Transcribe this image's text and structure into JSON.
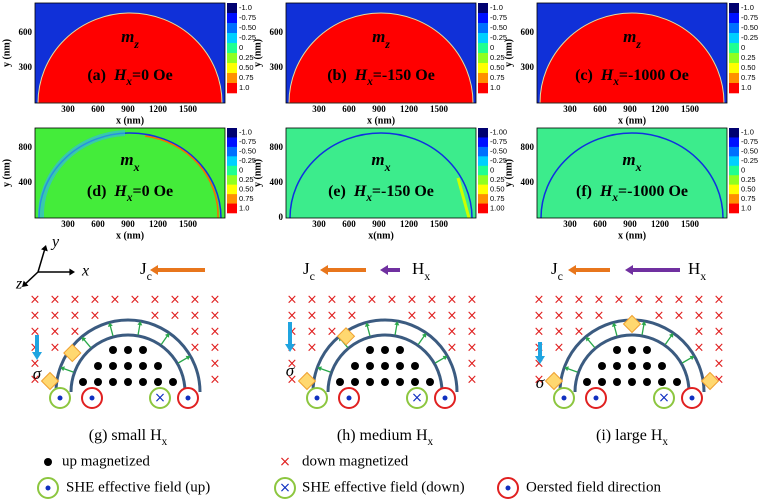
{
  "panels": [
    {
      "letter": "(a)",
      "component": "m",
      "component_sub": "z",
      "field": "H",
      "field_sub": "x",
      "field_value": "=0 Oe",
      "x_label": "x (nm)",
      "y_label": "y (nm)",
      "xticks": [
        "300",
        "600",
        "900",
        "1200",
        "1500"
      ],
      "yticks": [
        "300",
        "600"
      ],
      "colorbar": [
        "-1.0",
        "-0.75",
        "-0.50",
        "-0.25",
        "0",
        "0.25",
        "0.50",
        "0.75",
        "1.0"
      ]
    },
    {
      "letter": "(b)",
      "component": "m",
      "component_sub": "z",
      "field": "H",
      "field_sub": "x",
      "field_value": "=-150 Oe",
      "x_label": "x (nm)",
      "y_label": "y (nm)",
      "xticks": [
        "300",
        "600",
        "900",
        "1200",
        "1500"
      ],
      "yticks": [
        "300",
        "600"
      ],
      "colorbar": [
        "-1.0",
        "-0.75",
        "-0.50",
        "-0.25",
        "0",
        "0.25",
        "0.50",
        "0.75",
        "1.0"
      ]
    },
    {
      "letter": "(c)",
      "component": "m",
      "component_sub": "z",
      "field": "H",
      "field_sub": "x",
      "field_value": "=-1000 Oe",
      "x_label": "x (nm)",
      "y_label": "y (nm)",
      "xticks": [
        "300",
        "600",
        "900",
        "1200",
        "1500"
      ],
      "yticks": [
        "300",
        "600"
      ],
      "colorbar": [
        "-1.0",
        "-0.75",
        "-0.50",
        "-0.25",
        "0",
        "0.25",
        "0.50",
        "0.75",
        "1.0"
      ]
    },
    {
      "letter": "(d)",
      "component": "m",
      "component_sub": "x",
      "field": "H",
      "field_sub": "x",
      "field_value": "=0 Oe",
      "x_label": "x (nm)",
      "y_label": "y (nm)",
      "xticks": [
        "300",
        "600",
        "900",
        "1200",
        "1500"
      ],
      "yticks": [
        "400",
        "800"
      ],
      "colorbar": [
        "-1.0",
        "-0.75",
        "-0.50",
        "-0.25",
        "0",
        "0.25",
        "0.50",
        "0.75",
        "1.0"
      ]
    },
    {
      "letter": "(e)",
      "component": "m",
      "component_sub": "x",
      "field": "H",
      "field_sub": "x",
      "field_value": "=-150 Oe",
      "x_label": "x(nm)",
      "y_label": "y (nm)",
      "xticks": [
        "300",
        "600",
        "900",
        "1200",
        "1500"
      ],
      "yticks": [
        "0",
        "400",
        "800"
      ],
      "colorbar": [
        "-1.00",
        "-0.75",
        "-0.50",
        "-0.25",
        "0",
        "0.25",
        "0.50",
        "0.75",
        "1.00"
      ]
    },
    {
      "letter": "(f)",
      "component": "m",
      "component_sub": "x",
      "field": "H",
      "field_sub": "x",
      "field_value": "=-1000 Oe",
      "x_label": "x (nm)",
      "y_label": "y (nm)",
      "xticks": [
        "300",
        "600",
        "900",
        "1200",
        "1500"
      ],
      "yticks": [
        "400",
        "800"
      ],
      "colorbar": [
        "-1.0",
        "-0.75",
        "-0.50",
        "-0.25",
        "0",
        "0.25",
        "0.50",
        "0.75",
        "1.0"
      ]
    }
  ],
  "axes": {
    "y": "y",
    "x": "x",
    "z": "z"
  },
  "current": {
    "symbol": "J",
    "sub": "c"
  },
  "field": {
    "symbol": "H",
    "sub": "x"
  },
  "sigma": "σ",
  "diagrams": [
    {
      "caption": "(g) small H",
      "caption_sub": "x"
    },
    {
      "caption": "(h)  medium H",
      "caption_sub": "x"
    },
    {
      "caption": "(i) large H",
      "caption_sub": "x"
    }
  ],
  "legend": [
    "up magnetized",
    "down magnetized",
    "SHE effective  field (up)",
    "SHE effective field (down)",
    "Oersted field direction"
  ]
}
